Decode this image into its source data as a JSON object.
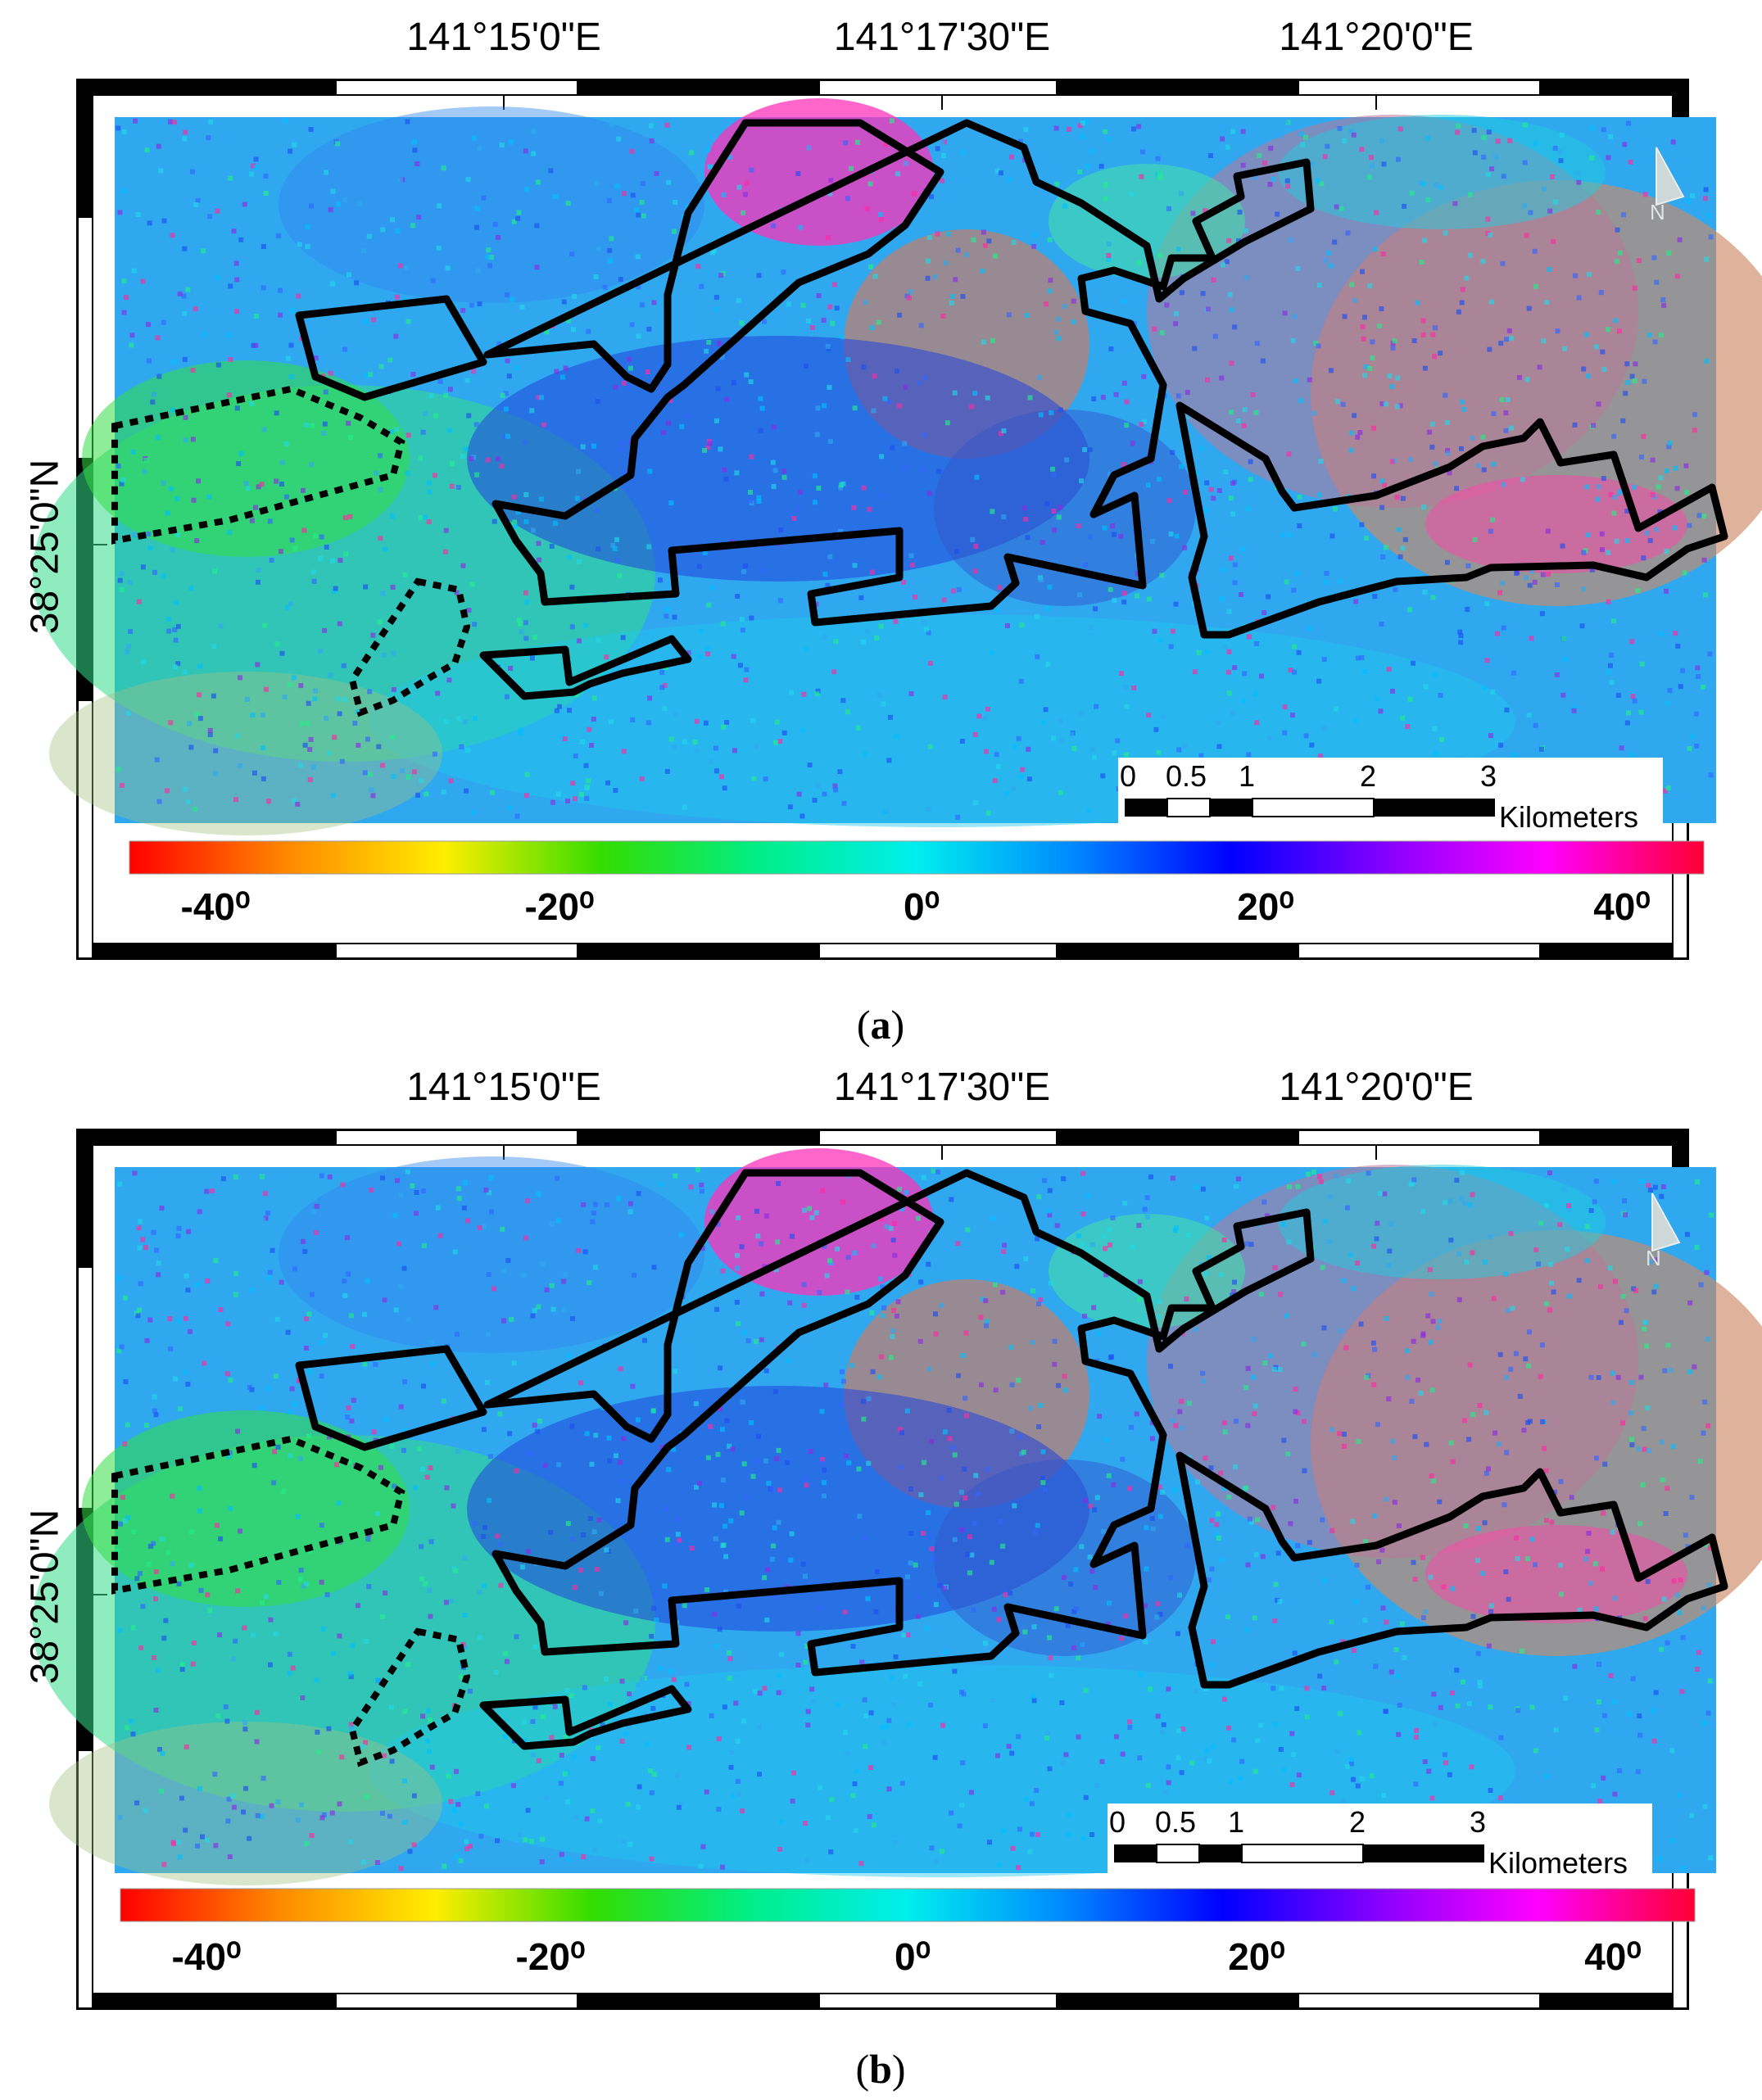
{
  "panels": [
    {
      "id": "a",
      "caption_letter": "a",
      "longitude_ticks": [
        "141°15'0\"E",
        "141°17'30\"E",
        "141°20'0\"E"
      ],
      "latitude_tick": "38°25'0\"N",
      "colorbar": {
        "min": -45,
        "max": 45,
        "labels": [
          "-40⁰",
          "-20⁰",
          "0⁰",
          "20⁰",
          "40⁰"
        ]
      },
      "scalebar": {
        "labels": [
          "0",
          "0.5",
          "1",
          "2",
          "3"
        ],
        "unit": "Kilometers"
      },
      "north_symbol": "N"
    },
    {
      "id": "b",
      "caption_letter": "b",
      "longitude_ticks": [
        "141°15'0\"E",
        "141°17'30\"E",
        "141°20'0\"E"
      ],
      "latitude_tick": "38°25'0\"N",
      "colorbar": {
        "min": -45,
        "max": 45,
        "labels": [
          "-40⁰",
          "-20⁰",
          "0⁰",
          "20⁰",
          "40⁰"
        ]
      },
      "scalebar": {
        "labels": [
          "0",
          "0.5",
          "1",
          "2",
          "3"
        ],
        "unit": "Kilometers"
      },
      "north_symbol": "N"
    }
  ],
  "colormap": [
    "#ff0000",
    "#ff8800",
    "#ffee00",
    "#33dd00",
    "#00ee88",
    "#00eeee",
    "#0088ff",
    "#0000ff",
    "#8800ff",
    "#ff00ff",
    "#ff0033"
  ]
}
